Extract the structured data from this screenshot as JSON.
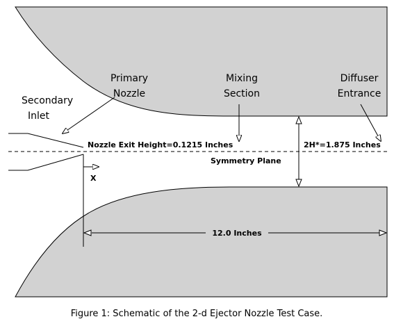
{
  "labels": {
    "primary_nozzle": [
      "Primary",
      "Nozzle"
    ],
    "mixing_section": [
      "Mixing",
      "Section"
    ],
    "diffuser_entrance": [
      "Diffuser",
      "Entrance"
    ],
    "secondary_inlet": [
      "Secondary",
      "Inlet"
    ],
    "nozzle_exit_height": "Nozzle Exit Height=0.1215 Inches",
    "throat_height": "2H*=1.875 Inches",
    "symmetry_plane": "Symmetry Plane",
    "x_axis": "X",
    "length": "12.0 Inches"
  },
  "caption": "Figure 1:  Schematic of the 2-d Ejector Nozzle Test Case.",
  "colors": {
    "wall_fill": "#d2d2d2",
    "line": "#000000",
    "background": "#ffffff"
  }
}
